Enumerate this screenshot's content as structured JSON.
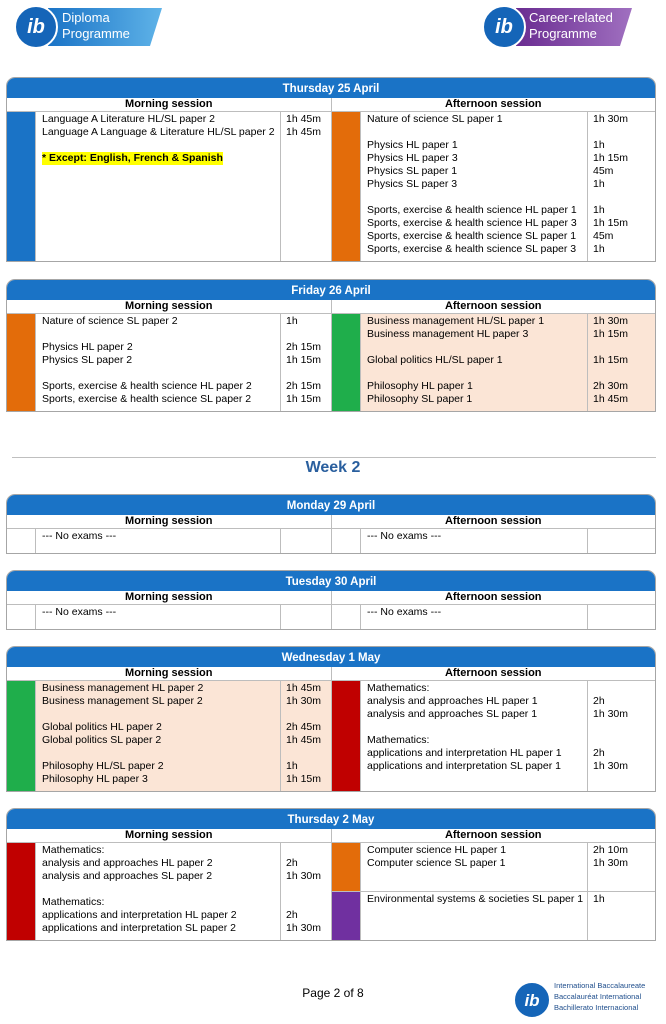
{
  "header": {
    "logo_mark": "ib",
    "left_logo": [
      "Diploma",
      "Programme"
    ],
    "right_logo": [
      "Career-related",
      "Programme"
    ]
  },
  "session_labels": {
    "morning": "Morning session",
    "afternoon": "Afternoon session"
  },
  "days": [
    {
      "title": "Thursday 25 April",
      "morning": {
        "rows": [
          {
            "color": "#1a73c6",
            "groups": [
              [
                {
                  "text": "Language A Literature HL/SL paper 2",
                  "time": "1h 45m"
                },
                {
                  "text": "Language A Language & Literature HL/SL paper 2",
                  "time": "1h 45m"
                }
              ],
              [
                {
                  "text": "* Except: English, French & Spanish",
                  "highlight": true
                }
              ]
            ]
          }
        ]
      },
      "afternoon": {
        "rows": [
          {
            "color": "#e36c0a",
            "groups": [
              [
                {
                  "text": "Nature of science SL paper 1",
                  "time": "1h 30m"
                }
              ],
              [
                {
                  "text": "Physics HL paper 1",
                  "time": "1h"
                },
                {
                  "text": "Physics HL paper 3",
                  "time": "1h 15m"
                },
                {
                  "text": "Physics SL paper 1",
                  "time": "45m"
                },
                {
                  "text": "Physics SL paper 3",
                  "time": "1h"
                }
              ],
              [
                {
                  "text": "Sports, exercise & health science HL paper 1",
                  "time": "1h"
                },
                {
                  "text": "Sports, exercise & health science HL paper 3",
                  "time": "1h 15m"
                },
                {
                  "text": "Sports, exercise & health science SL paper 1",
                  "time": "45m"
                },
                {
                  "text": "Sports, exercise & health science SL paper 3",
                  "time": "1h"
                }
              ]
            ]
          }
        ]
      }
    },
    {
      "title": "Friday 26 April",
      "morning": {
        "rows": [
          {
            "color": "#e36c0a",
            "groups": [
              [
                {
                  "text": "Nature of science SL paper 2",
                  "time": "1h"
                }
              ],
              [
                {
                  "text": "Physics HL paper 2",
                  "time": "2h 15m"
                },
                {
                  "text": "Physics SL paper 2",
                  "time": "1h 15m"
                }
              ],
              [
                {
                  "text": "Sports, exercise & health science HL paper 2",
                  "time": "2h 15m"
                },
                {
                  "text": "Sports, exercise & health science SL paper 2",
                  "time": "1h 15m"
                }
              ]
            ]
          }
        ]
      },
      "afternoon": {
        "rows": [
          {
            "color": "#1fae4b",
            "shade": true,
            "groups": [
              [
                {
                  "text": "Business management HL/SL paper 1",
                  "time": "1h 30m"
                },
                {
                  "text": "Business management HL paper 3",
                  "time": "1h 15m"
                }
              ],
              [
                {
                  "text": "Global politics HL/SL paper 1",
                  "time": "1h 15m"
                }
              ],
              [
                {
                  "text": "Philosophy HL paper 1",
                  "time": "2h 30m"
                },
                {
                  "text": "Philosophy SL paper 1",
                  "time": "1h 45m"
                }
              ]
            ]
          }
        ]
      }
    }
  ],
  "week": {
    "title": "Week 2",
    "days": [
      {
        "title": "Monday 29 April",
        "morning": {
          "rows": [
            {
              "groups": [
                [
                  {
                    "text": "--- No exams ---"
                  }
                ]
              ]
            }
          ]
        },
        "afternoon": {
          "rows": [
            {
              "groups": [
                [
                  {
                    "text": "--- No exams ---"
                  }
                ]
              ]
            }
          ]
        }
      },
      {
        "title": "Tuesday 30 April",
        "morning": {
          "rows": [
            {
              "groups": [
                [
                  {
                    "text": "--- No exams ---"
                  }
                ]
              ]
            }
          ]
        },
        "afternoon": {
          "rows": [
            {
              "groups": [
                [
                  {
                    "text": "--- No exams ---"
                  }
                ]
              ]
            }
          ]
        }
      },
      {
        "title": "Wednesday 1 May",
        "morning": {
          "rows": [
            {
              "color": "#1fae4b",
              "shade": true,
              "groups": [
                [
                  {
                    "text": "Business management HL paper 2",
                    "time": "1h 45m"
                  },
                  {
                    "text": "Business management SL paper 2",
                    "time": "1h 30m"
                  }
                ],
                [
                  {
                    "text": "Global politics HL paper 2",
                    "time": "2h 45m"
                  },
                  {
                    "text": "Global politics SL paper 2",
                    "time": "1h 45m"
                  }
                ],
                [
                  {
                    "text": "Philosophy HL/SL paper 2",
                    "time": "1h"
                  },
                  {
                    "text": "Philosophy HL paper 3",
                    "time": "1h 15m"
                  }
                ]
              ]
            }
          ]
        },
        "afternoon": {
          "rows": [
            {
              "color": "#c00000",
              "groups": [
                [
                  {
                    "text": "Mathematics:"
                  },
                  {
                    "text": "analysis and approaches HL paper 1",
                    "time": "2h"
                  },
                  {
                    "text": "analysis and approaches SL paper 1",
                    "time": "1h 30m"
                  }
                ],
                [
                  {
                    "text": "Mathematics:"
                  },
                  {
                    "text": "applications and interpretation HL paper 1",
                    "time": "2h"
                  },
                  {
                    "text": "applications and interpretation SL paper 1",
                    "time": "1h 30m"
                  }
                ]
              ]
            }
          ]
        }
      },
      {
        "title": "Thursday 2 May",
        "morning": {
          "rows": [
            {
              "color": "#c00000",
              "groups": [
                [
                  {
                    "text": "Mathematics:"
                  },
                  {
                    "text": "analysis and approaches HL paper 2",
                    "time": "2h"
                  },
                  {
                    "text": "analysis and approaches SL paper 2",
                    "time": "1h 30m"
                  }
                ],
                [
                  {
                    "text": "Mathematics:"
                  },
                  {
                    "text": "applications and interpretation HL paper 2",
                    "time": "2h"
                  },
                  {
                    "text": "applications and interpretation SL paper 2",
                    "time": "1h 30m"
                  }
                ]
              ]
            }
          ]
        },
        "afternoon": {
          "rows": [
            {
              "color": "#e36c0a",
              "groups": [
                [
                  {
                    "text": "Computer science HL paper 1",
                    "time": "2h 10m"
                  },
                  {
                    "text": "Computer science SL paper 1",
                    "time": "1h 30m"
                  }
                ]
              ]
            },
            {
              "color": "#7030a0",
              "groups": [
                [
                  {
                    "text": "Environmental systems & societies SL paper 1",
                    "time": "1h"
                  }
                ]
              ]
            }
          ]
        }
      }
    ]
  },
  "footer": {
    "page": "Page 2 of 8",
    "organization": [
      "International Baccalaureate",
      "Baccalauréat International",
      "Bachillerato Internacional"
    ]
  }
}
